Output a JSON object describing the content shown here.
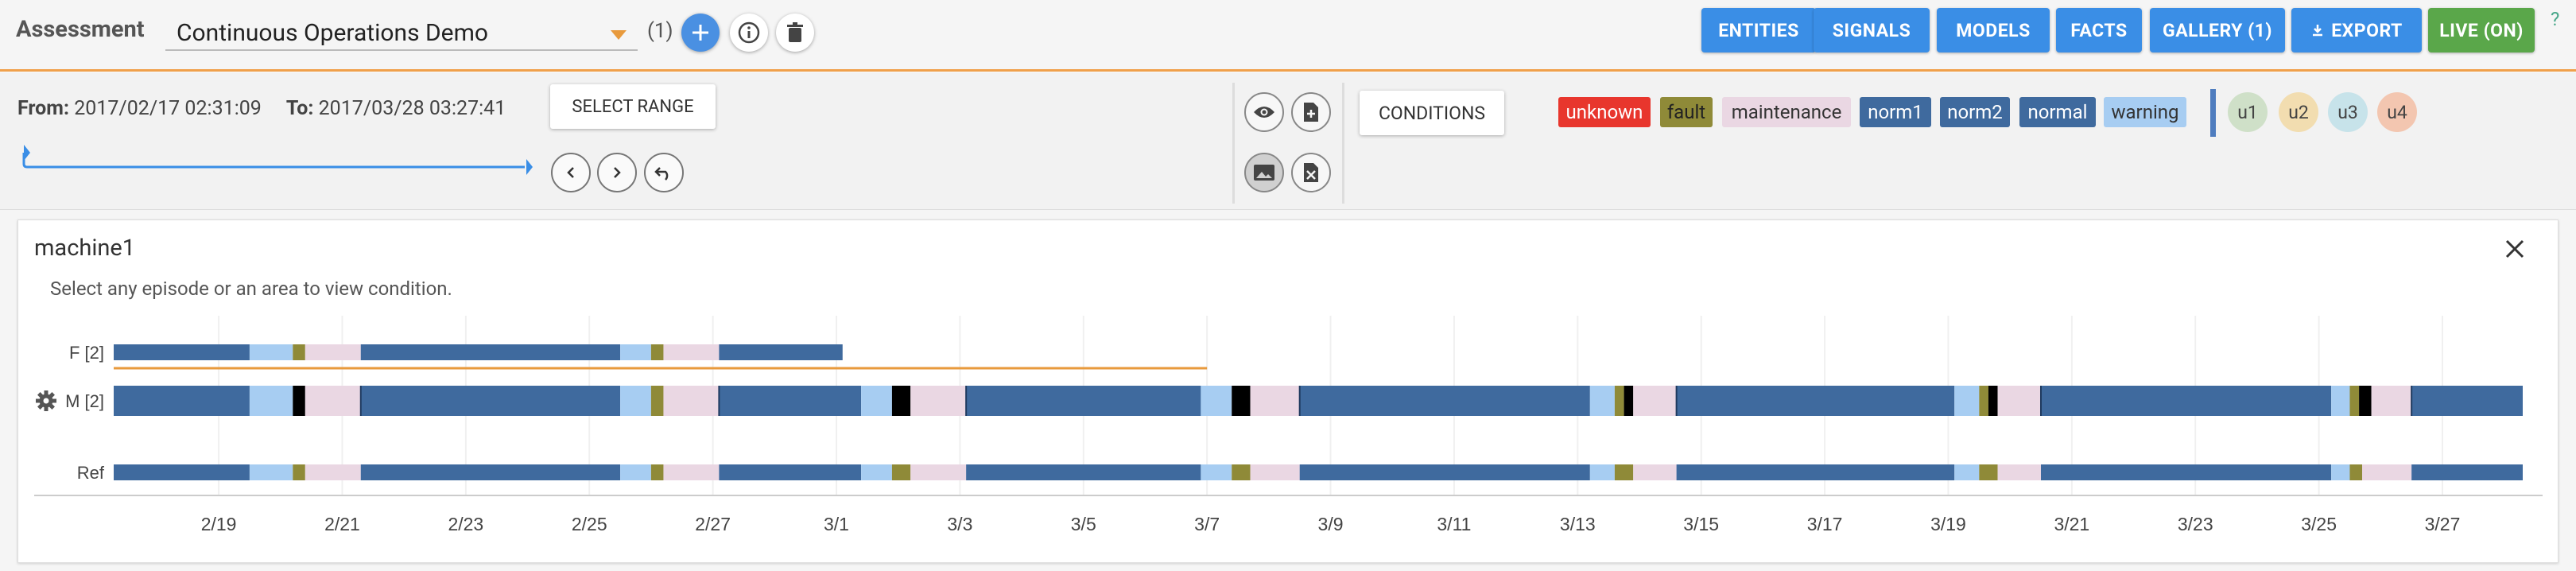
{
  "header": {
    "assessment_label": "Assessment",
    "assessment_value": "Continuous Operations Demo",
    "count": "(1)",
    "nav": [
      {
        "label": "ENTITIES",
        "name": "entities-button",
        "color": "blue"
      },
      {
        "label": "SIGNALS",
        "name": "signals-button",
        "color": "blue"
      },
      {
        "label": "MODELS",
        "name": "models-button",
        "color": "blue"
      },
      {
        "label": "FACTS",
        "name": "facts-button",
        "color": "blue"
      },
      {
        "label": "GALLERY (1)",
        "name": "gallery-button",
        "color": "blue"
      },
      {
        "label": "EXPORT",
        "name": "export-button",
        "color": "blue",
        "icon": "download-icon"
      },
      {
        "label": "LIVE (ON)",
        "name": "live-button",
        "color": "green"
      }
    ],
    "help": "?"
  },
  "toolbar": {
    "from_label": "From:",
    "from_value": "2017/02/17 02:31:09",
    "to_label": "To:",
    "to_value": "2017/03/28 03:27:41",
    "select_range": "SELECT RANGE",
    "conditions": "CONDITIONS",
    "legend": [
      {
        "label": "unknown",
        "bg": "#e8362d",
        "fg": "#ffffff"
      },
      {
        "label": "fault",
        "bg": "#8f8a38",
        "fg": "#222222"
      },
      {
        "label": "maintenance",
        "bg": "#ead7e3",
        "fg": "#333333"
      },
      {
        "label": "norm1",
        "bg": "#3f6a9e",
        "fg": "#ffffff"
      },
      {
        "label": "norm2",
        "bg": "#3f6a9e",
        "fg": "#ffffff"
      },
      {
        "label": "normal",
        "bg": "#3f6a9e",
        "fg": "#ffffff"
      },
      {
        "label": "warning",
        "bg": "#a7cdf2",
        "fg": "#333333"
      }
    ],
    "users": [
      {
        "label": "u1",
        "bg": "#cfe0c8"
      },
      {
        "label": "u2",
        "bg": "#f2ddb0"
      },
      {
        "label": "u3",
        "bg": "#c7e3ea"
      },
      {
        "label": "u4",
        "bg": "#f3c6b0"
      }
    ]
  },
  "panel": {
    "title": "machine1",
    "hint": "Select any episode or an area to view condition."
  },
  "chart_data": {
    "type": "timeline",
    "start_day": 0,
    "x_ticks": [
      "2/19",
      "2/21",
      "2/23",
      "2/25",
      "2/27",
      "3/1",
      "3/3",
      "3/5",
      "3/7",
      "3/9",
      "3/11",
      "3/13",
      "3/15",
      "3/17",
      "3/19",
      "3/21",
      "3/23",
      "3/25",
      "3/27"
    ],
    "colors": {
      "normal": "#3f6a9e",
      "warning": "#a7cdf2",
      "fault": "#8f8a38",
      "maintenance": "#ead7e3",
      "unknown": "#e8362d",
      "black": "#000000"
    },
    "rows": [
      {
        "label": "F [2]",
        "style": "thin",
        "segments": [
          [
            "normal",
            0,
            2.2
          ],
          [
            "warning",
            2.2,
            2.9
          ],
          [
            "fault",
            2.9,
            3.1
          ],
          [
            "maintenance",
            3.1,
            4.0
          ],
          [
            "normal",
            4.0,
            8.2
          ],
          [
            "warning",
            8.2,
            8.7
          ],
          [
            "fault",
            8.7,
            8.9
          ],
          [
            "maintenance",
            8.9,
            9.8
          ],
          [
            "normal",
            9.8,
            11.8
          ]
        ]
      },
      {
        "label": "M [2]",
        "style": "thick",
        "gear": true,
        "segments": [
          [
            "normal",
            0,
            2.2
          ],
          [
            "warning",
            2.2,
            2.9
          ],
          [
            "black",
            2.9,
            3.1
          ],
          [
            "maintenance",
            3.1,
            4.0
          ],
          [
            "normal",
            4.0,
            8.2
          ],
          [
            "warning",
            8.2,
            8.7
          ],
          [
            "fault",
            8.7,
            8.9
          ],
          [
            "maintenance",
            8.9,
            9.8
          ],
          [
            "normal",
            9.8,
            12.1
          ],
          [
            "warning",
            12.1,
            12.6
          ],
          [
            "black",
            12.6,
            12.9
          ],
          [
            "maintenance",
            12.9,
            13.8
          ],
          [
            "normal",
            13.8,
            17.6
          ],
          [
            "warning",
            17.6,
            18.1
          ],
          [
            "black",
            18.1,
            18.4
          ],
          [
            "maintenance",
            18.4,
            19.2
          ],
          [
            "normal",
            19.2,
            23.9
          ],
          [
            "warning",
            23.9,
            24.3
          ],
          [
            "fault",
            24.3,
            24.45
          ],
          [
            "black",
            24.45,
            24.6
          ],
          [
            "maintenance",
            24.6,
            25.3
          ],
          [
            "normal",
            25.3,
            29.8
          ],
          [
            "warning",
            29.8,
            30.2
          ],
          [
            "fault",
            30.2,
            30.35
          ],
          [
            "black",
            30.35,
            30.5
          ],
          [
            "maintenance",
            30.5,
            31.2
          ],
          [
            "normal",
            31.2,
            35.9
          ],
          [
            "warning",
            35.9,
            36.2
          ],
          [
            "fault",
            36.2,
            36.35
          ],
          [
            "black",
            36.35,
            36.55
          ],
          [
            "maintenance",
            36.55,
            37.2
          ],
          [
            "normal",
            37.2,
            39.0
          ]
        ]
      },
      {
        "label": "Ref",
        "style": "thin",
        "segments": [
          [
            "normal",
            0,
            2.2
          ],
          [
            "warning",
            2.2,
            2.9
          ],
          [
            "fault",
            2.9,
            3.1
          ],
          [
            "maintenance",
            3.1,
            4.0
          ],
          [
            "normal",
            4.0,
            8.2
          ],
          [
            "warning",
            8.2,
            8.7
          ],
          [
            "fault",
            8.7,
            8.9
          ],
          [
            "maintenance",
            8.9,
            9.8
          ],
          [
            "normal",
            9.8,
            12.1
          ],
          [
            "warning",
            12.1,
            12.6
          ],
          [
            "fault",
            12.6,
            12.9
          ],
          [
            "maintenance",
            12.9,
            13.8
          ],
          [
            "normal",
            13.8,
            17.6
          ],
          [
            "warning",
            17.6,
            18.1
          ],
          [
            "fault",
            18.1,
            18.4
          ],
          [
            "maintenance",
            18.4,
            19.2
          ],
          [
            "normal",
            19.2,
            23.9
          ],
          [
            "warning",
            23.9,
            24.3
          ],
          [
            "fault",
            24.3,
            24.6
          ],
          [
            "maintenance",
            24.6,
            25.3
          ],
          [
            "normal",
            25.3,
            29.8
          ],
          [
            "warning",
            29.8,
            30.2
          ],
          [
            "fault",
            30.2,
            30.5
          ],
          [
            "maintenance",
            30.5,
            31.2
          ],
          [
            "normal",
            31.2,
            35.9
          ],
          [
            "warning",
            35.9,
            36.2
          ],
          [
            "fault",
            36.2,
            36.4
          ],
          [
            "maintenance",
            36.4,
            37.2
          ],
          [
            "normal",
            37.2,
            39.0
          ]
        ]
      }
    ]
  }
}
